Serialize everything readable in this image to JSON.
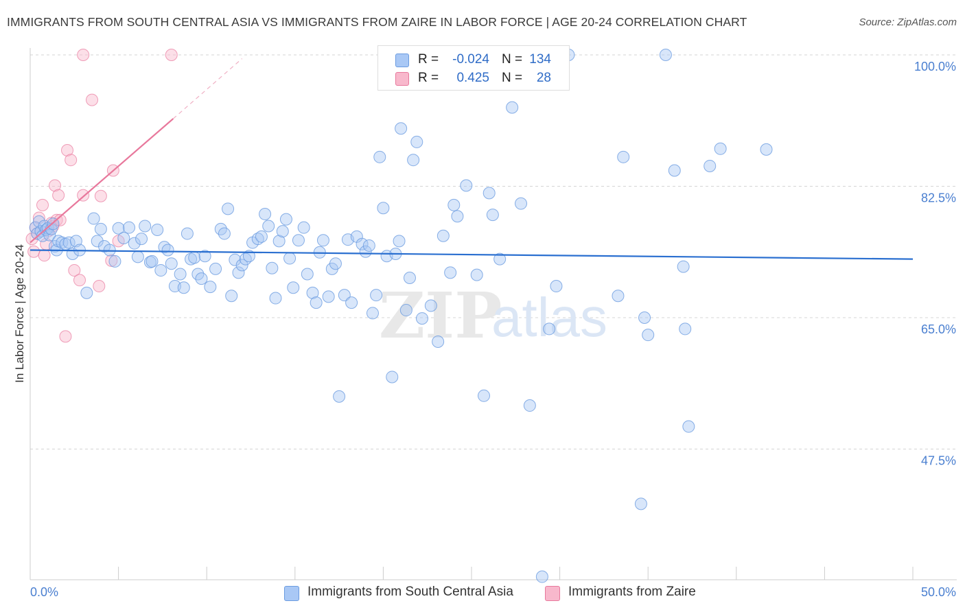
{
  "title": "IMMIGRANTS FROM SOUTH CENTRAL ASIA VS IMMIGRANTS FROM ZAIRE IN LABOR FORCE | AGE 20-24 CORRELATION CHART",
  "source": "Source: ZipAtlas.com",
  "legend": {
    "r_label": "R =",
    "n_label": "N =",
    "rows": [
      {
        "r": "-0.024",
        "n": "134",
        "color": "#a9c8f5"
      },
      {
        "r": "0.425",
        "n": "28",
        "color": "#f8b8cc"
      }
    ]
  },
  "watermark": {
    "zip": "ZIP",
    "atlas": "atlas"
  },
  "chart_data": {
    "type": "scatter",
    "title": "IMMIGRANTS FROM SOUTH CENTRAL ASIA VS IMMIGRANTS FROM ZAIRE IN LABOR FORCE | AGE 20-24 CORRELATION CHART",
    "xlabel": "",
    "ylabel": "In Labor Force | Age 20-24",
    "xlim": [
      0,
      50
    ],
    "ylim": [
      30,
      101
    ],
    "x_tick_labels": [
      "0.0%",
      "50.0%"
    ],
    "y_ticks": [
      47.5,
      65.0,
      82.5,
      100.0
    ],
    "y_tick_labels": [
      "47.5%",
      "65.0%",
      "82.5%",
      "100.0%"
    ],
    "grid": true,
    "legend_position": "top-center",
    "series": [
      {
        "name": "Immigrants from South Central Asia",
        "color": "#6a9be0",
        "fill": "#a9c8f5",
        "r": -0.024,
        "n": 134,
        "trend": [
          [
            0,
            74.0
          ],
          [
            50,
            72.8
          ]
        ],
        "points": [
          [
            0.3,
            77.0
          ],
          [
            0.4,
            76.2
          ],
          [
            0.5,
            77.8
          ],
          [
            0.6,
            76.5
          ],
          [
            0.7,
            75.9
          ],
          [
            0.8,
            77.2
          ],
          [
            0.9,
            76.7
          ],
          [
            1.0,
            76.9
          ],
          [
            1.1,
            76.0
          ],
          [
            1.2,
            76.8
          ],
          [
            1.3,
            77.5
          ],
          [
            1.4,
            74.5
          ],
          [
            1.5,
            74.0
          ],
          [
            1.6,
            75.2
          ],
          [
            1.8,
            75.0
          ],
          [
            2.0,
            74.8
          ],
          [
            2.2,
            75.0
          ],
          [
            2.4,
            73.5
          ],
          [
            2.6,
            75.2
          ],
          [
            2.8,
            74.0
          ],
          [
            3.2,
            68.3
          ],
          [
            3.6,
            78.2
          ],
          [
            3.8,
            75.2
          ],
          [
            4.0,
            76.8
          ],
          [
            4.2,
            74.5
          ],
          [
            4.5,
            74.0
          ],
          [
            4.8,
            72.5
          ],
          [
            5.0,
            76.9
          ],
          [
            5.3,
            75.6
          ],
          [
            5.6,
            77.0
          ],
          [
            5.9,
            74.9
          ],
          [
            6.1,
            73.1
          ],
          [
            6.3,
            75.5
          ],
          [
            6.5,
            77.2
          ],
          [
            6.8,
            72.4
          ],
          [
            6.9,
            72.5
          ],
          [
            7.2,
            76.7
          ],
          [
            7.4,
            71.3
          ],
          [
            7.6,
            74.4
          ],
          [
            7.8,
            74.0
          ],
          [
            8.0,
            72.2
          ],
          [
            8.2,
            69.2
          ],
          [
            8.5,
            70.8
          ],
          [
            8.7,
            69.0
          ],
          [
            8.9,
            76.2
          ],
          [
            9.1,
            72.8
          ],
          [
            9.3,
            73.0
          ],
          [
            9.5,
            70.8
          ],
          [
            9.7,
            70.2
          ],
          [
            9.9,
            73.2
          ],
          [
            10.2,
            69.1
          ],
          [
            10.5,
            71.5
          ],
          [
            10.8,
            76.8
          ],
          [
            11.0,
            76.2
          ],
          [
            11.2,
            79.5
          ],
          [
            11.4,
            67.9
          ],
          [
            11.6,
            72.7
          ],
          [
            11.8,
            71.0
          ],
          [
            12.0,
            72.0
          ],
          [
            12.2,
            72.8
          ],
          [
            12.4,
            73.2
          ],
          [
            12.6,
            75.0
          ],
          [
            12.9,
            75.5
          ],
          [
            13.1,
            75.8
          ],
          [
            13.3,
            78.8
          ],
          [
            13.5,
            77.2
          ],
          [
            13.7,
            71.6
          ],
          [
            13.9,
            67.6
          ],
          [
            14.1,
            75.2
          ],
          [
            14.3,
            76.5
          ],
          [
            14.5,
            78.1
          ],
          [
            14.7,
            72.9
          ],
          [
            14.9,
            69.0
          ],
          [
            15.2,
            75.3
          ],
          [
            15.5,
            77.0
          ],
          [
            15.7,
            70.8
          ],
          [
            16.0,
            68.3
          ],
          [
            16.2,
            67.0
          ],
          [
            16.4,
            73.7
          ],
          [
            16.6,
            75.3
          ],
          [
            16.9,
            67.8
          ],
          [
            17.1,
            71.5
          ],
          [
            17.3,
            72.2
          ],
          [
            17.5,
            54.5
          ],
          [
            17.8,
            68.0
          ],
          [
            18.0,
            75.4
          ],
          [
            18.2,
            67.0
          ],
          [
            18.5,
            75.8
          ],
          [
            18.8,
            74.8
          ],
          [
            19.0,
            73.8
          ],
          [
            19.2,
            74.6
          ],
          [
            19.4,
            65.6
          ],
          [
            19.6,
            68.0
          ],
          [
            19.8,
            86.4
          ],
          [
            20.0,
            79.6
          ],
          [
            20.2,
            73.2
          ],
          [
            20.5,
            57.1
          ],
          [
            20.7,
            73.5
          ],
          [
            20.9,
            75.2
          ],
          [
            21.0,
            90.2
          ],
          [
            21.3,
            66.0
          ],
          [
            21.5,
            70.3
          ],
          [
            21.7,
            86.0
          ],
          [
            21.9,
            88.4
          ],
          [
            22.2,
            64.9
          ],
          [
            22.7,
            66.6
          ],
          [
            23.1,
            61.8
          ],
          [
            23.4,
            75.9
          ],
          [
            23.8,
            71.0
          ],
          [
            24.0,
            80.0
          ],
          [
            24.2,
            78.5
          ],
          [
            24.7,
            82.6
          ],
          [
            25.3,
            70.7
          ],
          [
            25.7,
            54.6
          ],
          [
            26.0,
            81.6
          ],
          [
            26.2,
            78.7
          ],
          [
            26.6,
            72.8
          ],
          [
            27.3,
            93.0
          ],
          [
            27.8,
            80.2
          ],
          [
            28.3,
            53.3
          ],
          [
            29.4,
            63.5
          ],
          [
            29.8,
            69.2
          ],
          [
            30.5,
            100.0
          ],
          [
            33.3,
            67.9
          ],
          [
            33.6,
            86.4
          ],
          [
            34.6,
            40.2
          ],
          [
            34.8,
            65.0
          ],
          [
            35.0,
            62.7
          ],
          [
            36.0,
            100.0
          ],
          [
            36.5,
            84.6
          ],
          [
            37.0,
            71.8
          ],
          [
            37.1,
            63.5
          ],
          [
            37.3,
            50.5
          ],
          [
            38.5,
            85.2
          ],
          [
            39.1,
            87.5
          ],
          [
            41.7,
            87.4
          ],
          [
            29.0,
            30.5
          ]
        ]
      },
      {
        "name": "Immigrants from Zaire",
        "color": "#e8789c",
        "fill": "#f8b8cc",
        "r": 0.425,
        "n": 28,
        "trend": [
          [
            0,
            75.0
          ],
          [
            8.1,
            91.5
          ]
        ],
        "trend_dashed": [
          [
            8.1,
            91.5
          ],
          [
            12.0,
            99.5
          ]
        ],
        "points": [
          [
            0.1,
            75.5
          ],
          [
            0.2,
            73.8
          ],
          [
            0.3,
            77.0
          ],
          [
            0.4,
            76.2
          ],
          [
            0.5,
            78.3
          ],
          [
            0.7,
            80.0
          ],
          [
            0.8,
            73.3
          ],
          [
            0.9,
            74.8
          ],
          [
            1.0,
            76.5
          ],
          [
            1.2,
            77.6
          ],
          [
            1.3,
            77.2
          ],
          [
            1.4,
            82.6
          ],
          [
            1.5,
            78.0
          ],
          [
            1.6,
            81.3
          ],
          [
            1.7,
            78.0
          ],
          [
            2.0,
            62.5
          ],
          [
            2.1,
            87.3
          ],
          [
            2.3,
            86.0
          ],
          [
            2.5,
            71.3
          ],
          [
            2.8,
            70.0
          ],
          [
            3.0,
            81.3
          ],
          [
            3.5,
            94.0
          ],
          [
            3.9,
            69.2
          ],
          [
            4.0,
            81.2
          ],
          [
            4.6,
            72.6
          ],
          [
            4.7,
            84.6
          ],
          [
            5.0,
            75.2
          ],
          [
            3.0,
            100.0
          ],
          [
            8.0,
            100.0
          ]
        ]
      }
    ]
  },
  "bottom_legend": [
    "Immigrants from South Central Asia",
    "Immigrants from Zaire"
  ]
}
